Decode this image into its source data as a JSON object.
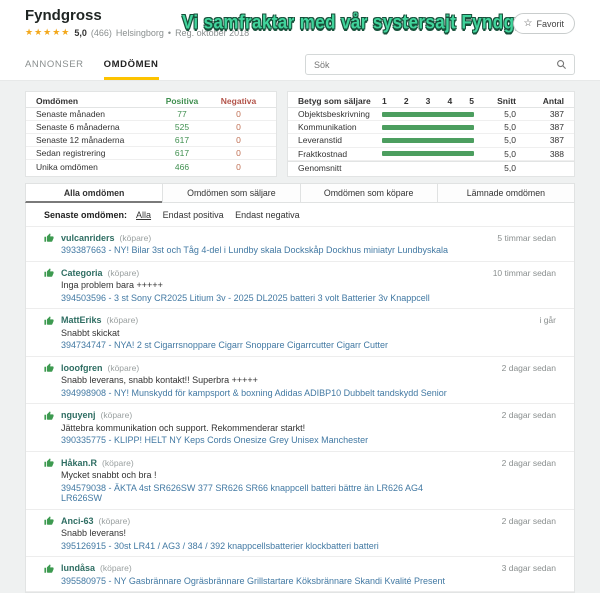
{
  "header": {
    "title": "Fyndgross",
    "stars": "★★★★★",
    "rating": "5,0",
    "rating_count": "(466)",
    "location": "Helsingborg",
    "separator": "•",
    "registered": "Reg. oktober 2018",
    "promo": "Vi samfraktar med vår systersajt Fyndgross!",
    "favorite_star": "☆",
    "favorite_label": "Favorit"
  },
  "nav": {
    "tabs": [
      {
        "label": "ANNONSER",
        "active": false
      },
      {
        "label": "OMDÖMEN",
        "active": true
      }
    ],
    "search_placeholder": "Sök"
  },
  "stats_table": {
    "title": "Omdömen",
    "col_positive": "Positiva",
    "col_negative": "Negativa",
    "rows": [
      {
        "label": "Senaste månaden",
        "positive": "77",
        "negative": "0"
      },
      {
        "label": "Senaste 6 månaderna",
        "positive": "525",
        "negative": "0"
      },
      {
        "label": "Senaste 12 månaderna",
        "positive": "617",
        "negative": "0"
      },
      {
        "label": "Sedan registrering",
        "positive": "617",
        "negative": "0"
      },
      {
        "label": "Unika omdömen",
        "positive": "466",
        "negative": "0"
      }
    ]
  },
  "ratings_table": {
    "title": "Betyg som säljare",
    "scale": [
      "1",
      "2",
      "3",
      "4",
      "5"
    ],
    "col_avg": "Snitt",
    "col_count": "Antal",
    "rows": [
      {
        "label": "Objektsbeskrivning",
        "avg": "5,0",
        "count": "387",
        "bar_pct": 100
      },
      {
        "label": "Kommunikation",
        "avg": "5,0",
        "count": "387",
        "bar_pct": 100
      },
      {
        "label": "Leveranstid",
        "avg": "5,0",
        "count": "387",
        "bar_pct": 100
      },
      {
        "label": "Fraktkostnad",
        "avg": "5,0",
        "count": "388",
        "bar_pct": 100
      }
    ],
    "footer_label": "Genomsnitt",
    "footer_avg": "5,0"
  },
  "filter_tabs": [
    {
      "label": "Alla omdömen",
      "active": true
    },
    {
      "label": "Omdömen som säljare",
      "active": false
    },
    {
      "label": "Omdömen som köpare",
      "active": false
    },
    {
      "label": "Lämnade omdömen",
      "active": false
    }
  ],
  "filter_row": {
    "label": "Senaste omdömen:",
    "options": [
      {
        "label": "Alla",
        "active": true
      },
      {
        "label": "Endast positiva",
        "active": false
      },
      {
        "label": "Endast negativa",
        "active": false
      }
    ]
  },
  "feedback": {
    "role_label": "(köpare)",
    "items": [
      {
        "user": "vulcanriders",
        "comment": "",
        "item": "393387663 - NY! Bilar 3st och Tåg 4-del i Lundby skala Dockskåp Dockhus miniatyr Lundbyskala",
        "time": "5 timmar sedan"
      },
      {
        "user": "Categoria",
        "comment": "Inga problem bara +++++",
        "item": "394503596 - 3 st Sony CR2025 Litium 3v - 2025 DL2025 batteri 3 volt Batterier 3v Knappcell",
        "time": "10 timmar sedan"
      },
      {
        "user": "MattEriks",
        "comment": "Snabbt skickat",
        "item": "394734747 - NYA! 2 st Cigarrsnoppare Cigarr Snoppare Cigarrcutter Cigarr Cutter",
        "time": "i går"
      },
      {
        "user": "looofgren",
        "comment": "Snabb leverans, snabb kontakt!! Superbra +++++",
        "item": "394998908 - NY! Munskydd för kampsport & boxning Adidas ADIBP10 Dubbelt tandskydd Senior",
        "time": "2 dagar sedan"
      },
      {
        "user": "nguyenj",
        "comment": "Jättebra kommunikation och support. Rekommenderar starkt!",
        "item": "390335775 - KLIPP! HELT NY Keps Cords Onesize Grey Unisex Manchester",
        "time": "2 dagar sedan"
      },
      {
        "user": "Håkan.R",
        "comment": "Mycket snabbt och bra !",
        "item": "394579038 - ÄKTA 4st SR626SW 377 SR626 SR66 knappcell batteri bättre än LR626 AG4 LR626SW",
        "time": "2 dagar sedan"
      },
      {
        "user": "Anci-63",
        "comment": "Snabb leverans!",
        "item": "395126915 - 30st LR41 / AG3 / 384 / 392 knappcellsbatterier klockbatteri batteri",
        "time": "2 dagar sedan"
      },
      {
        "user": "lundåsa",
        "comment": "",
        "item": "395580975 - NY Gasbrännare Ogräsbrännare Grillstartare Köksbrännare Skandi Kvalité Present",
        "time": "3 dagar sedan"
      }
    ]
  },
  "colors": {
    "accent_yellow": "#fdc300",
    "positive_green": "#3f8f4f",
    "bar_green": "#4c9e5f",
    "negative_red": "#b3544a",
    "link_blue": "#4279a3",
    "promo_green": "#41d49c",
    "star_gold": "#f3a81c"
  }
}
